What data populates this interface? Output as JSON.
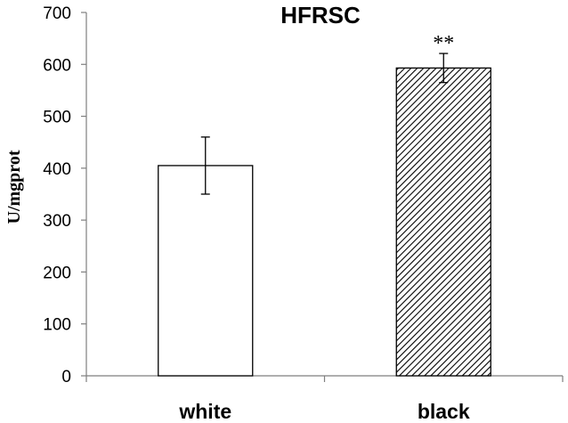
{
  "chart_data": {
    "type": "bar",
    "title": "HFRSC",
    "xlabel": "",
    "ylabel": "U/mgprot",
    "categories": [
      "white",
      "black"
    ],
    "values": [
      405,
      593
    ],
    "error": [
      55,
      28
    ],
    "annotations": [
      "",
      "**"
    ],
    "ylim": [
      0,
      700
    ],
    "yticks": [
      0,
      100,
      200,
      300,
      400,
      500,
      600,
      700
    ],
    "ytick_labels": [
      "0",
      "100",
      "200",
      "300",
      "400",
      "500",
      "600",
      "700"
    ],
    "grid": false,
    "bar_fills": [
      "white",
      "diagonal-hatch"
    ],
    "colors": {
      "bar_edge": "#000000",
      "fill_white": "#ffffff",
      "hatch": "#000000"
    }
  }
}
